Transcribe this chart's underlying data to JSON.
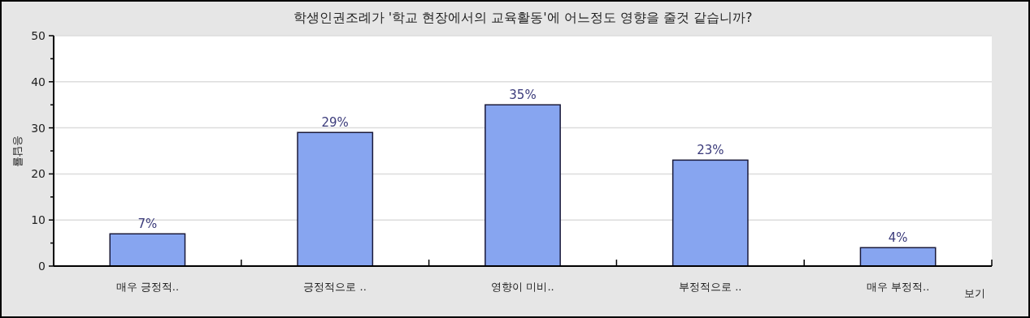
{
  "chart_data": {
    "type": "bar",
    "title": "학생인권조례가 '학교 현장에서의 교육활동'에 어느정도 영향을 줄것 같습니까?",
    "xlabel": "보기",
    "ylabel": "응답률",
    "categories": [
      "매우 긍정적..",
      "긍정적으로 ..",
      "영향이 미비..",
      "부정적으로 ..",
      "매우 부정적.."
    ],
    "values": [
      7,
      29,
      35,
      23,
      4
    ],
    "value_labels": [
      "7%",
      "29%",
      "35%",
      "23%",
      "4%"
    ],
    "color": "#87a5f0",
    "ylim": [
      0,
      50
    ],
    "yticks": [
      0,
      {
        "value": 5,
        "label": null
      },
      10,
      {
        "value": 15,
        "label": null
      },
      20,
      {
        "value": 25,
        "label": null
      },
      30,
      {
        "value": 35,
        "label": null
      },
      40,
      {
        "value": 45,
        "label": null
      },
      50
    ],
    "grid": "y"
  }
}
